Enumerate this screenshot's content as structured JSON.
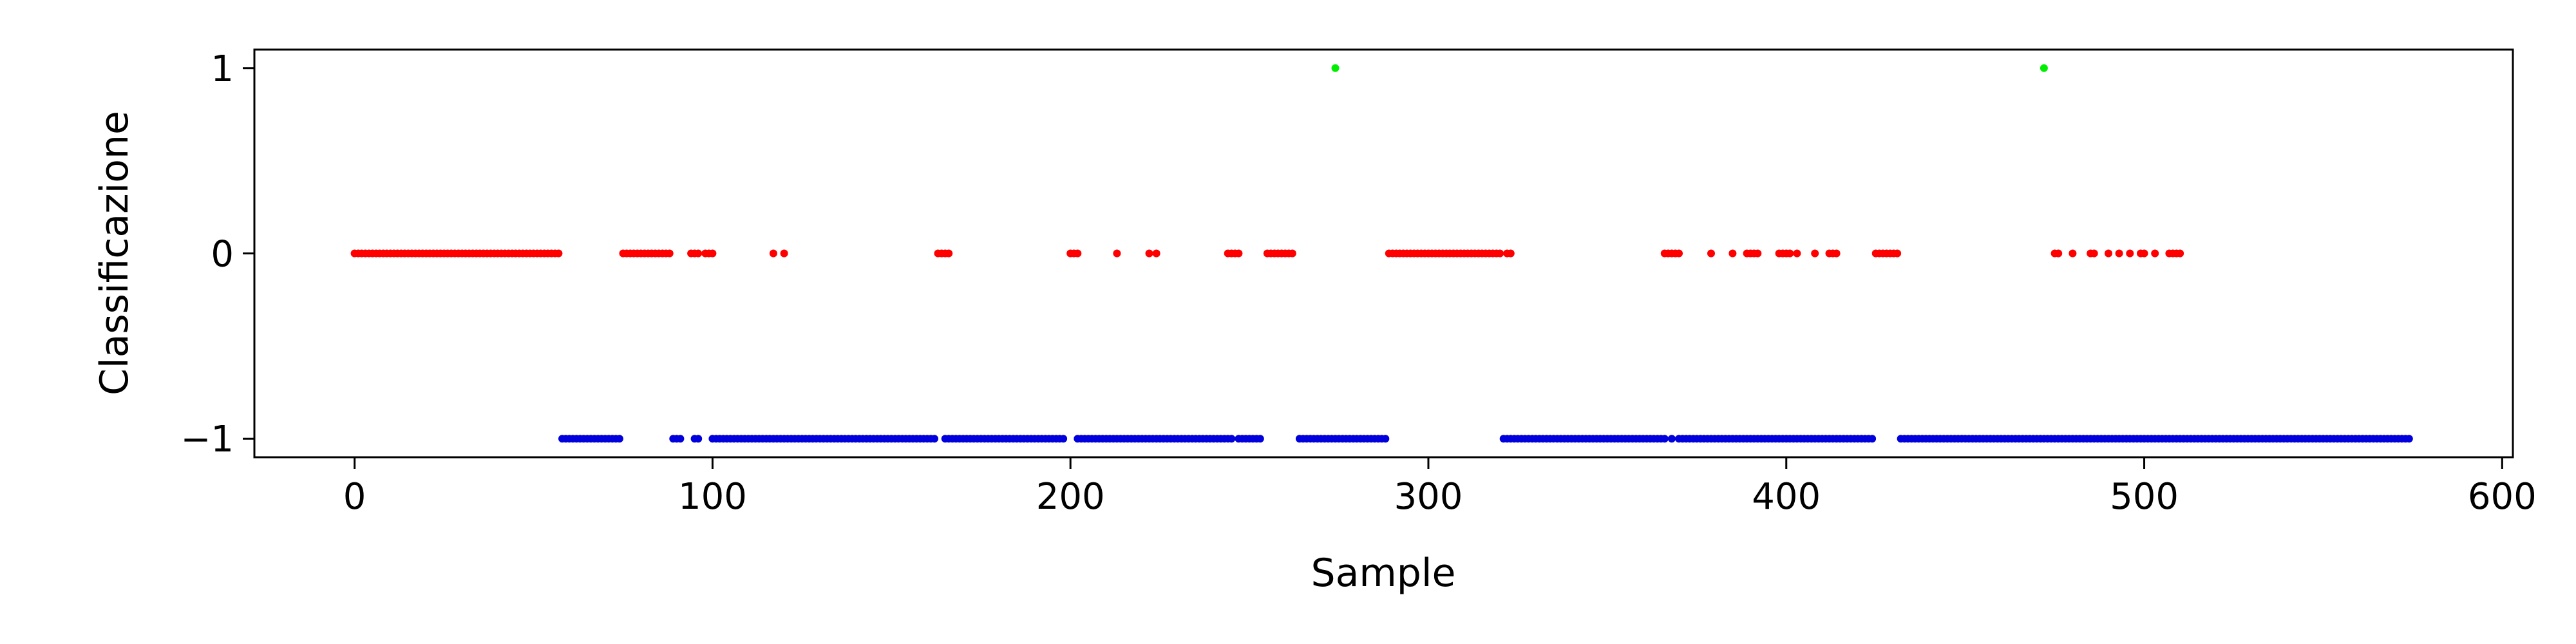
{
  "chart_data": {
    "type": "scatter",
    "title": "",
    "xlabel": "Sample",
    "ylabel": "Classificazione",
    "xlim": [
      -28,
      603
    ],
    "ylim": [
      -1.1,
      1.1
    ],
    "x_ticks": [
      0,
      100,
      200,
      300,
      400,
      500,
      600
    ],
    "y_ticks": [
      -1,
      0,
      1
    ],
    "y_tick_labels": [
      "−1",
      "0",
      "1"
    ],
    "grid": false,
    "legend": "none",
    "series": [
      {
        "color": "#ff0000",
        "y": 0,
        "x_ranges": [
          [
            0,
            57
          ],
          [
            75,
            88
          ],
          [
            94,
            96
          ],
          [
            98,
            100
          ],
          [
            117,
            117
          ],
          [
            120,
            120
          ],
          [
            163,
            166
          ],
          [
            200,
            202
          ],
          [
            213,
            213
          ],
          [
            222,
            222
          ],
          [
            224,
            224
          ],
          [
            244,
            247
          ],
          [
            255,
            262
          ],
          [
            289,
            320
          ],
          [
            322,
            323
          ],
          [
            366,
            370
          ],
          [
            379,
            379
          ],
          [
            385,
            385
          ],
          [
            389,
            392
          ],
          [
            398,
            401
          ],
          [
            403,
            403
          ],
          [
            408,
            408
          ],
          [
            412,
            414
          ],
          [
            425,
            431
          ],
          [
            475,
            476
          ],
          [
            480,
            480
          ],
          [
            485,
            486
          ],
          [
            490,
            490
          ],
          [
            493,
            493
          ],
          [
            496,
            496
          ],
          [
            499,
            500
          ],
          [
            503,
            503
          ],
          [
            507,
            510
          ]
        ]
      },
      {
        "color": "#0000dd",
        "y": -1,
        "x_ranges": [
          [
            58,
            74
          ],
          [
            89,
            91
          ],
          [
            95,
            96
          ],
          [
            100,
            162
          ],
          [
            165,
            198
          ],
          [
            202,
            245
          ],
          [
            247,
            253
          ],
          [
            264,
            288
          ],
          [
            321,
            366
          ],
          [
            368,
            368
          ],
          [
            370,
            424
          ],
          [
            432,
            574
          ]
        ]
      },
      {
        "color": "#00ee00",
        "y": 1,
        "x_ranges": [
          [
            274,
            274
          ],
          [
            472,
            472
          ]
        ]
      }
    ]
  }
}
